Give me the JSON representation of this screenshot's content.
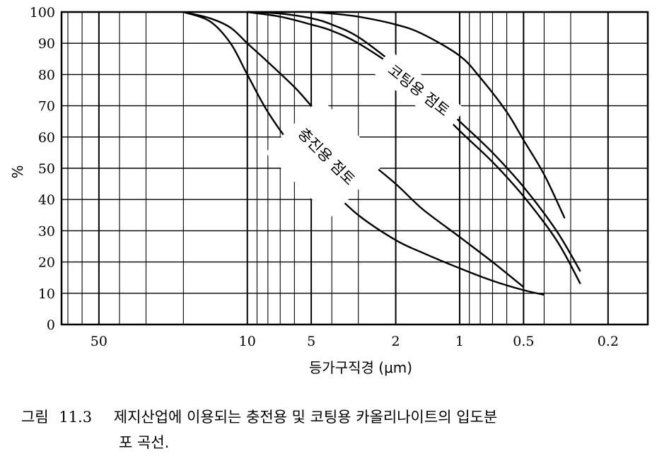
{
  "chart_data": {
    "type": "line",
    "xlabel": "등가구직경 (μm)",
    "ylabel": "%",
    "x_scale": "log",
    "x_reversed": true,
    "xlim": [
      75,
      0.13
    ],
    "ylim": [
      0,
      100
    ],
    "x_ticks": [
      50,
      10,
      5,
      2,
      1,
      0.5,
      0.2
    ],
    "x_tick_labels": [
      "50",
      "10",
      "5",
      "2",
      "1",
      "0.5",
      "0.2"
    ],
    "y_ticks": [
      0,
      10,
      20,
      30,
      40,
      50,
      60,
      70,
      80,
      90,
      100
    ],
    "y_tick_labels": [
      "0",
      "10",
      "20",
      "30",
      "40",
      "50",
      "60",
      "70",
      "80",
      "90",
      "100"
    ],
    "grid": true,
    "annotations": [
      "충진용 점토",
      "코팅용 점토"
    ],
    "series": [
      {
        "group": "충진용 점토",
        "x": [
          20,
          15,
          12,
          10,
          8,
          6,
          5,
          4,
          3,
          2,
          1.5,
          1,
          0.7,
          0.5,
          0.4
        ],
        "y": [
          100,
          97,
          90,
          80,
          68,
          56,
          50,
          43,
          35,
          27,
          23,
          18,
          14,
          11,
          9.5
        ]
      },
      {
        "group": "충진용 점토",
        "x": [
          20,
          15,
          12,
          10,
          8,
          6,
          5,
          4,
          3,
          2,
          1.5,
          1,
          0.7,
          0.5
        ],
        "y": [
          100,
          98,
          95,
          90,
          84,
          76,
          70,
          63,
          55,
          45,
          37,
          28,
          20,
          12
        ]
      },
      {
        "group": "코팅용 점토",
        "x": [
          10,
          7,
          5,
          4,
          3,
          2,
          1.5,
          1,
          0.7,
          0.5,
          0.35,
          0.27
        ],
        "y": [
          100,
          99.5,
          98,
          96,
          92,
          83,
          76,
          65,
          55,
          44,
          30,
          17
        ]
      },
      {
        "group": "코팅용 점토",
        "x": [
          10,
          7,
          5,
          4,
          3,
          2,
          1.5,
          1,
          0.7,
          0.5,
          0.35,
          0.27
        ],
        "y": [
          100,
          98.5,
          96,
          94,
          90,
          82,
          74,
          62,
          52,
          41,
          27,
          13
        ]
      },
      {
        "group": "코팅용 점토",
        "x": [
          10,
          7,
          5,
          4,
          3,
          2,
          1.5,
          1,
          0.8,
          0.6,
          0.5,
          0.4,
          0.32
        ],
        "y": [
          100,
          100,
          100,
          99.5,
          98.5,
          96,
          93,
          86,
          79,
          68,
          59,
          48,
          34
        ]
      }
    ]
  },
  "caption": {
    "label": "그림",
    "number": "11.3",
    "line1": "제지산업에 이용되는 충전용 및 코팅용 카올리나이트의 입도분",
    "line2": "포 곡선."
  }
}
